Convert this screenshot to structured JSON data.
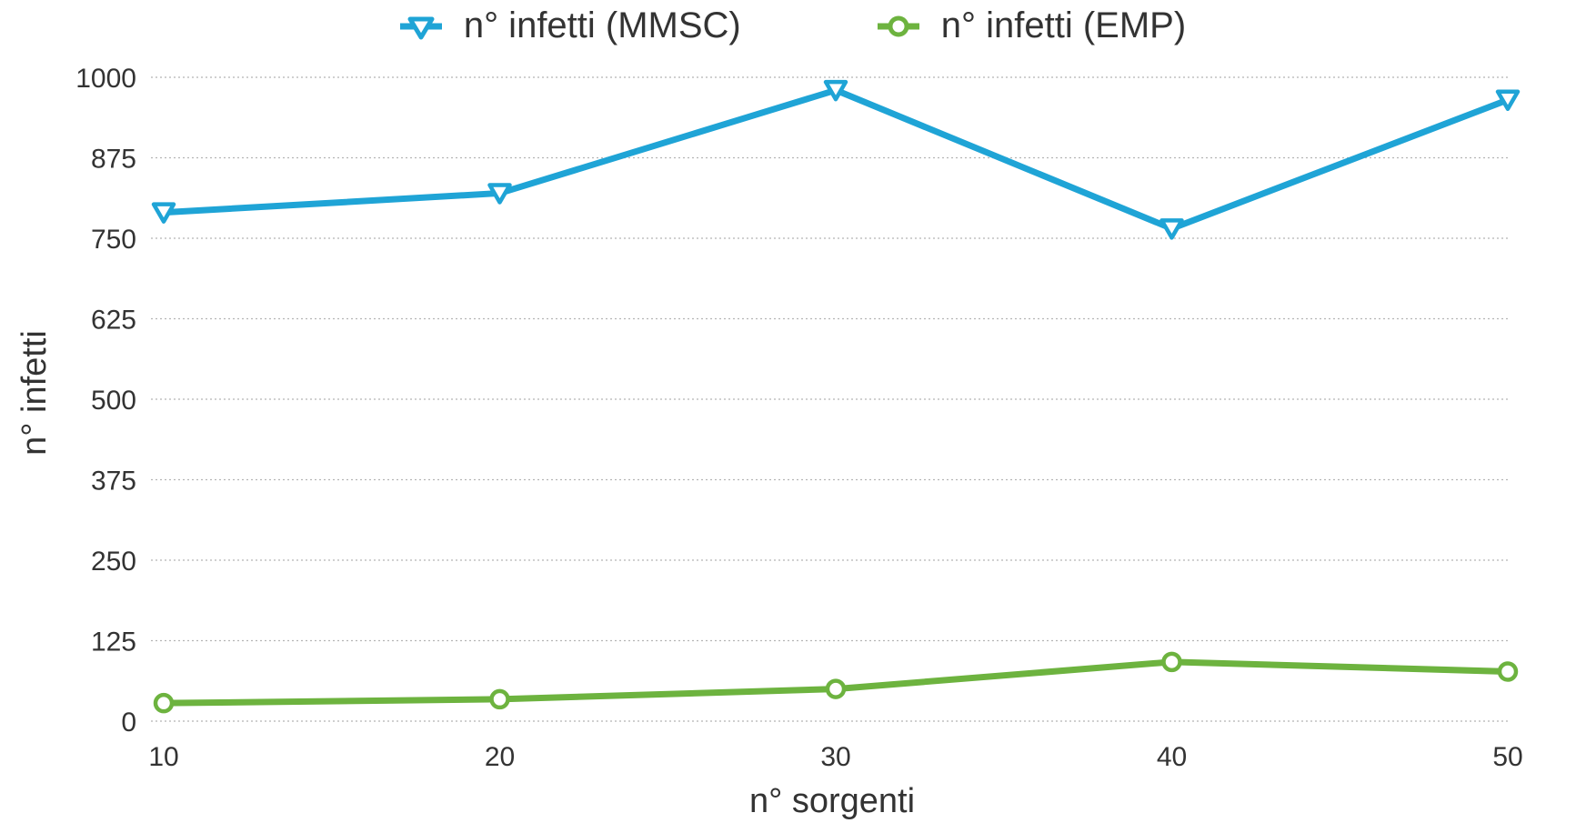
{
  "chart_data": {
    "type": "line",
    "xlabel": "n° sorgenti",
    "ylabel": "n° infetti",
    "x": [
      10,
      20,
      30,
      40,
      50
    ],
    "xlim": [
      10,
      50
    ],
    "ylim": [
      0,
      1000
    ],
    "yticks": [
      "0",
      "125",
      "250",
      "375",
      "500",
      "625",
      "750",
      "875",
      "1000"
    ],
    "xticks": [
      "10",
      "20",
      "30",
      "40",
      "50"
    ],
    "grid": true,
    "legend_position": "top-center",
    "series": [
      {
        "name": "n° infetti (MMSC)",
        "values": [
          790,
          820,
          980,
          765,
          965
        ],
        "color": "#1FA4D6",
        "marker": "triangle-down"
      },
      {
        "name": "n° infetti (EMP)",
        "values": [
          28,
          34,
          50,
          92,
          77
        ],
        "color": "#6DB33F",
        "marker": "circle"
      }
    ]
  }
}
